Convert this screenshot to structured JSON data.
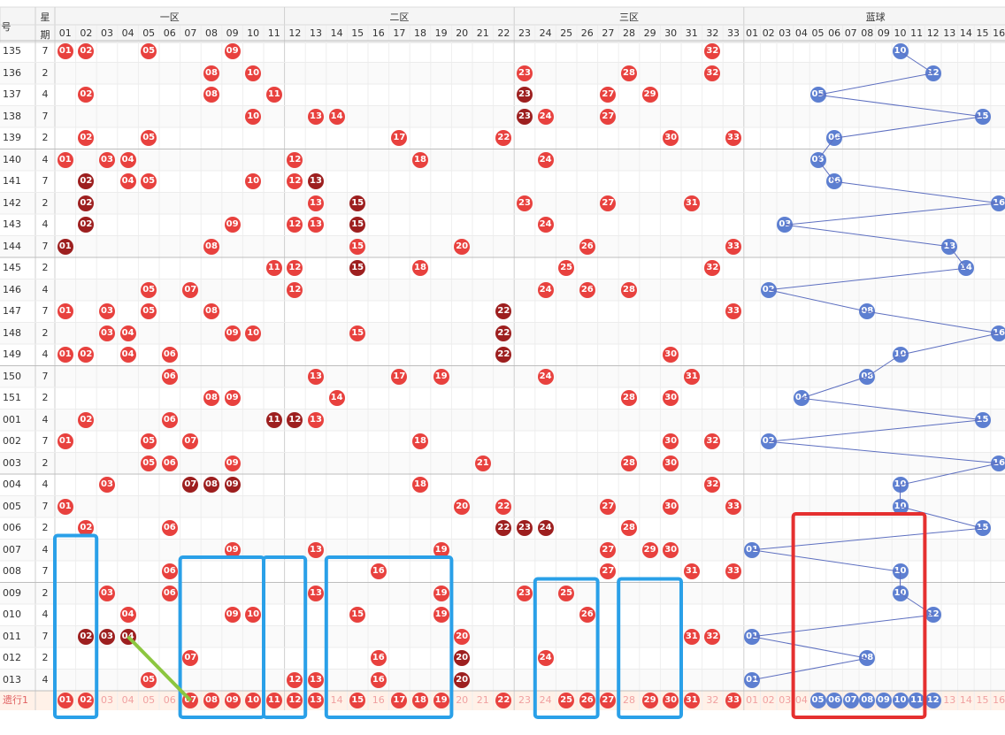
{
  "chart_data": {
    "type": "table",
    "title": "",
    "header": {
      "issue_col": "号",
      "week_col": [
        "星",
        "期"
      ],
      "zones": [
        "一区",
        "二区",
        "三区"
      ],
      "blue_zone": "蓝球",
      "red_numbers": [
        "01",
        "02",
        "03",
        "04",
        "05",
        "06",
        "07",
        "08",
        "09",
        "10",
        "11",
        "12",
        "13",
        "14",
        "15",
        "16",
        "17",
        "18",
        "19",
        "20",
        "21",
        "22",
        "23",
        "24",
        "25",
        "26",
        "27",
        "28",
        "29",
        "30",
        "31",
        "32",
        "33"
      ],
      "blue_numbers": [
        "01",
        "02",
        "03",
        "04",
        "05",
        "06",
        "07",
        "08",
        "09",
        "10",
        "11",
        "12",
        "13",
        "14",
        "15",
        "16"
      ]
    },
    "rows": [
      {
        "issue": "135",
        "week": "7",
        "red": [
          "01",
          "02",
          "05",
          "09",
          "32"
        ],
        "blue": "10"
      },
      {
        "issue": "136",
        "week": "2",
        "red": [
          "08",
          "10",
          "23",
          "28",
          "32"
        ],
        "blue": "12"
      },
      {
        "issue": "137",
        "week": "4",
        "red": [
          "02",
          "08",
          "11",
          "23",
          "27",
          "29"
        ],
        "blue": "05"
      },
      {
        "issue": "138",
        "week": "7",
        "red": [
          "10",
          "13",
          "14",
          "23",
          "24",
          "27"
        ],
        "blue": "15"
      },
      {
        "issue": "139",
        "week": "2",
        "red": [
          "02",
          "05",
          "17",
          "22",
          "30",
          "33"
        ],
        "blue": "06"
      },
      {
        "issue": "140",
        "week": "4",
        "red": [
          "01",
          "03",
          "04",
          "12",
          "18",
          "24"
        ],
        "blue": "05"
      },
      {
        "issue": "141",
        "week": "7",
        "red": [
          "02",
          "04",
          "05",
          "10",
          "12",
          "13"
        ],
        "blue": "06"
      },
      {
        "issue": "142",
        "week": "2",
        "red": [
          "02",
          "13",
          "15",
          "23",
          "27",
          "31"
        ],
        "blue": "16"
      },
      {
        "issue": "143",
        "week": "4",
        "red": [
          "02",
          "09",
          "12",
          "13",
          "15",
          "24"
        ],
        "blue": "03"
      },
      {
        "issue": "144",
        "week": "7",
        "red": [
          "01",
          "08",
          "15",
          "20",
          "26",
          "33"
        ],
        "blue": "13"
      },
      {
        "issue": "145",
        "week": "2",
        "red": [
          "11",
          "12",
          "15",
          "18",
          "25",
          "32"
        ],
        "blue": "14"
      },
      {
        "issue": "146",
        "week": "4",
        "red": [
          "05",
          "07",
          "12",
          "24",
          "26",
          "28"
        ],
        "blue": "02"
      },
      {
        "issue": "147",
        "week": "7",
        "red": [
          "01",
          "03",
          "05",
          "08",
          "22",
          "33"
        ],
        "blue": "08"
      },
      {
        "issue": "148",
        "week": "2",
        "red": [
          "03",
          "04",
          "09",
          "10",
          "15",
          "22"
        ],
        "blue": "16"
      },
      {
        "issue": "149",
        "week": "4",
        "red": [
          "01",
          "02",
          "04",
          "06",
          "22",
          "30"
        ],
        "blue": "10"
      },
      {
        "issue": "150",
        "week": "7",
        "red": [
          "06",
          "13",
          "17",
          "19",
          "24",
          "31"
        ],
        "blue": "08"
      },
      {
        "issue": "151",
        "week": "2",
        "red": [
          "08",
          "09",
          "14",
          "28",
          "30"
        ],
        "blue": "04"
      },
      {
        "issue": "001",
        "week": "4",
        "red": [
          "02",
          "06",
          "11",
          "12",
          "13"
        ],
        "blue": "15"
      },
      {
        "issue": "002",
        "week": "7",
        "red": [
          "01",
          "05",
          "07",
          "18",
          "30",
          "32"
        ],
        "blue": "02"
      },
      {
        "issue": "003",
        "week": "2",
        "red": [
          "05",
          "06",
          "09",
          "21",
          "28",
          "30"
        ],
        "blue": "16"
      },
      {
        "issue": "004",
        "week": "4",
        "red": [
          "03",
          "07",
          "08",
          "09",
          "18",
          "32"
        ],
        "blue": "10"
      },
      {
        "issue": "005",
        "week": "7",
        "red": [
          "01",
          "20",
          "22",
          "27",
          "30",
          "33"
        ],
        "blue": "10"
      },
      {
        "issue": "006",
        "week": "2",
        "red": [
          "02",
          "06",
          "22",
          "23",
          "24",
          "28"
        ],
        "blue": "15"
      },
      {
        "issue": "007",
        "week": "4",
        "red": [
          "09",
          "13",
          "19",
          "27",
          "29",
          "30"
        ],
        "blue": "01"
      },
      {
        "issue": "008",
        "week": "7",
        "red": [
          "06",
          "16",
          "27",
          "31",
          "33"
        ],
        "blue": "10"
      },
      {
        "issue": "009",
        "week": "2",
        "red": [
          "03",
          "06",
          "13",
          "19",
          "23",
          "25"
        ],
        "blue": "10"
      },
      {
        "issue": "010",
        "week": "4",
        "red": [
          "04",
          "09",
          "10",
          "15",
          "19",
          "26"
        ],
        "blue": "12"
      },
      {
        "issue": "011",
        "week": "7",
        "red": [
          "02",
          "03",
          "04",
          "20",
          "31",
          "32"
        ],
        "blue": "01"
      },
      {
        "issue": "012",
        "week": "2",
        "red": [
          "07",
          "16",
          "20",
          "24"
        ],
        "blue": "08"
      },
      {
        "issue": "013",
        "week": "4",
        "red": [
          "05",
          "12",
          "13",
          "16",
          "20"
        ],
        "blue": "01"
      }
    ],
    "footer": {
      "label": "遗行1",
      "red_highlight": [
        "01",
        "02",
        "07",
        "08",
        "09",
        "10",
        "11",
        "12",
        "13",
        "15",
        "17",
        "18",
        "19",
        "22",
        "25",
        "26",
        "27",
        "29",
        "30",
        "31",
        "33"
      ],
      "blue_highlight": [
        "05",
        "06",
        "07",
        "08",
        "09",
        "10",
        "11",
        "12"
      ]
    },
    "overlay_colors": {
      "blue_box": "#2aa0e8",
      "red_box": "#e53030",
      "green_line": "#8cc63f",
      "blue_trend_line": "#5d6fc0"
    }
  }
}
